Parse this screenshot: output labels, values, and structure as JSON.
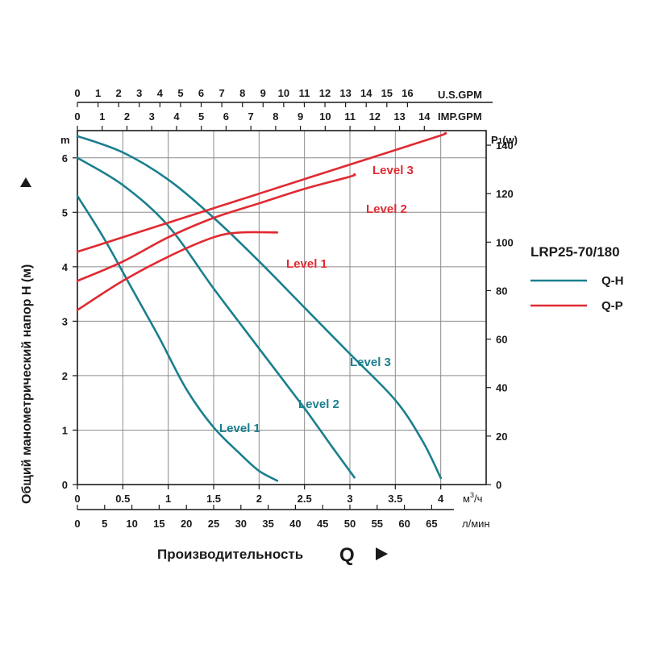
{
  "chart_data": {
    "type": "line",
    "model": "LRP25-70/180",
    "y_left": {
      "label": "Общий манометрический напор H (м)",
      "unit": "m",
      "range": [
        0,
        6.5
      ],
      "ticks": [
        "0",
        "1",
        "2",
        "3",
        "4",
        "5",
        "6"
      ]
    },
    "y_right": {
      "unit_prefix": "P",
      "unit_sub": "1",
      "unit_suffix": "(w)",
      "range": [
        0,
        146
      ],
      "ticks": [
        "0",
        "20",
        "40",
        "60",
        "80",
        "100",
        "120",
        "140"
      ]
    },
    "x_m3h": {
      "unit": "м³/ч",
      "unit_base": "м",
      "unit_sup": "3",
      "unit_tail": "/ч",
      "range": [
        0,
        4.5
      ],
      "ticks": [
        "0",
        "0.5",
        "1",
        "1.5",
        "2",
        "2.5",
        "3",
        "3.5",
        "4"
      ]
    },
    "x_lmin": {
      "unit": "л/мин",
      "ticks": [
        "0",
        "5",
        "10",
        "15",
        "20",
        "25",
        "30",
        "35",
        "40",
        "45",
        "50",
        "55",
        "60",
        "65"
      ]
    },
    "x_usgpm": {
      "unit": "U.S.GPM",
      "ticks": [
        "0",
        "1",
        "2",
        "3",
        "4",
        "5",
        "6",
        "7",
        "8",
        "9",
        "10",
        "11",
        "12",
        "13",
        "14",
        "15",
        "16"
      ]
    },
    "x_impgpm": {
      "unit": "IMP.GPM",
      "ticks": [
        "0",
        "1",
        "2",
        "3",
        "4",
        "5",
        "6",
        "7",
        "8",
        "9",
        "10",
        "11",
        "12",
        "13",
        "14"
      ]
    },
    "xlabel": "Производительность",
    "xlabel_symbol": "Q",
    "legend": {
      "title": "LRP25-70/180",
      "placement": "right",
      "items": [
        {
          "label": "Q-H",
          "color": "#1a7f8e"
        },
        {
          "label": "Q-P",
          "color": "#e02a32"
        }
      ]
    },
    "qh_series": [
      {
        "name": "Level 1",
        "color": "#1a7f8e",
        "points": [
          [
            0,
            5.3
          ],
          [
            0.3,
            4.5
          ],
          [
            0.6,
            3.6
          ],
          [
            0.9,
            2.7
          ],
          [
            1.2,
            1.75
          ],
          [
            1.5,
            1.05
          ],
          [
            1.8,
            0.55
          ],
          [
            2.0,
            0.25
          ],
          [
            2.2,
            0.07
          ]
        ]
      },
      {
        "name": "Level 2",
        "color": "#1a7f8e",
        "points": [
          [
            0,
            6.0
          ],
          [
            0.5,
            5.5
          ],
          [
            1.0,
            4.75
          ],
          [
            1.5,
            3.6
          ],
          [
            2.0,
            2.5
          ],
          [
            2.5,
            1.4
          ],
          [
            2.8,
            0.7
          ],
          [
            3.05,
            0.13
          ]
        ]
      },
      {
        "name": "Level 3",
        "color": "#1a7f8e",
        "points": [
          [
            0,
            6.4
          ],
          [
            0.5,
            6.1
          ],
          [
            1.0,
            5.6
          ],
          [
            1.5,
            4.9
          ],
          [
            2.0,
            4.1
          ],
          [
            2.5,
            3.25
          ],
          [
            3.0,
            2.4
          ],
          [
            3.5,
            1.55
          ],
          [
            3.8,
            0.8
          ],
          [
            4.0,
            0.12
          ]
        ]
      }
    ],
    "qp_series": [
      {
        "name": "Level 1",
        "color": "#e02a32",
        "points": [
          [
            0,
            72
          ],
          [
            0.5,
            84
          ],
          [
            1.0,
            94
          ],
          [
            1.5,
            102
          ],
          [
            1.8,
            104
          ],
          [
            2.2,
            104
          ]
        ]
      },
      {
        "name": "Level 2",
        "color": "#e02a32",
        "points": [
          [
            0,
            84
          ],
          [
            0.5,
            92
          ],
          [
            1.0,
            102
          ],
          [
            1.5,
            110
          ],
          [
            2.0,
            116
          ],
          [
            2.5,
            122
          ],
          [
            3.0,
            127
          ],
          [
            3.05,
            128
          ]
        ]
      },
      {
        "name": "Level 3",
        "color": "#e02a32",
        "points": [
          [
            0,
            96
          ],
          [
            0.5,
            102
          ],
          [
            1.0,
            108
          ],
          [
            1.5,
            114
          ],
          [
            2.0,
            120
          ],
          [
            2.5,
            126
          ],
          [
            3.0,
            132
          ],
          [
            3.5,
            138
          ],
          [
            4.0,
            144
          ],
          [
            4.05,
            145
          ]
        ]
      }
    ],
    "curve_labels": {
      "qh": [
        "Level 1",
        "Level 2",
        "Level 3"
      ],
      "qp": [
        "Level 1",
        "Level 2",
        "Level 3"
      ]
    }
  }
}
